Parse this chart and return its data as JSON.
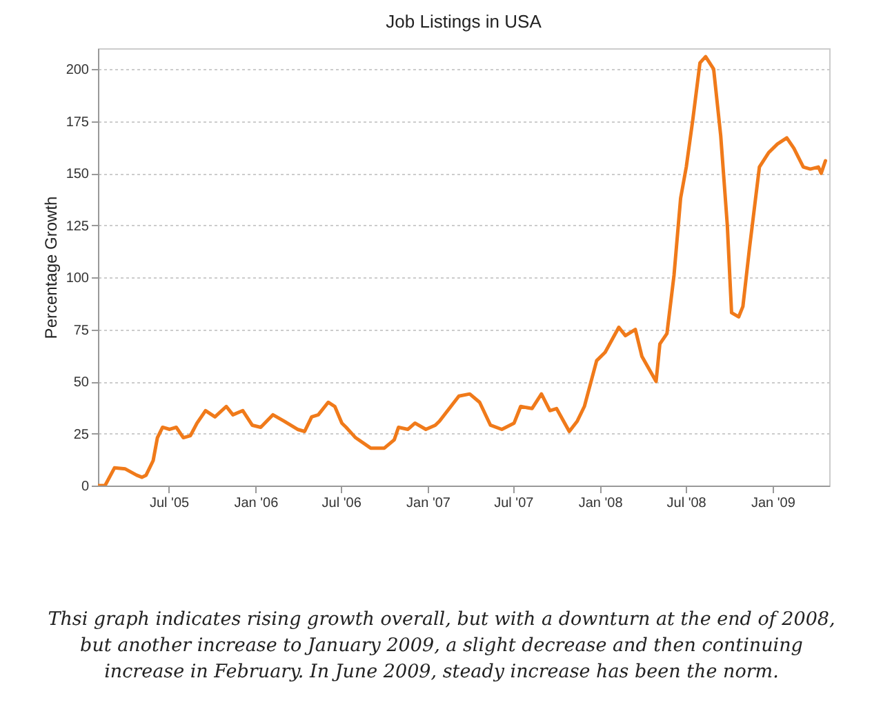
{
  "chart_data": {
    "type": "line",
    "title": "Job Listings in USA",
    "ylabel": "Percentage Growth",
    "annotations": [
      "Thsi graph indicates rising growth overall, but with a downturn at the end of 2008, but another increase to January 2009, a slight decrease and then continuing increase in February. In June 2009, steady increase has been the norm."
    ],
    "x": [
      "2005-02-01",
      "2005-02-16",
      "2005-03-08",
      "2005-03-31",
      "2005-04-24",
      "2005-05-05",
      "2005-05-14",
      "2005-05-29",
      "2005-06-07",
      "2005-06-18",
      "2005-07-03",
      "2005-07-17",
      "2005-08-01",
      "2005-08-16",
      "2005-08-30",
      "2005-09-17",
      "2005-10-07",
      "2005-10-31",
      "2005-11-14",
      "2005-12-05",
      "2005-12-25",
      "2006-01-12",
      "2006-02-07",
      "2006-03-02",
      "2006-03-31",
      "2006-04-15",
      "2006-04-30",
      "2006-05-14",
      "2006-06-04",
      "2006-06-18",
      "2006-07-03",
      "2006-07-12",
      "2006-08-01",
      "2006-09-02",
      "2006-10-01",
      "2006-10-22",
      "2006-10-31",
      "2006-11-20",
      "2006-12-05",
      "2006-12-28",
      "2007-01-17",
      "2007-01-26",
      "2007-03-08",
      "2007-03-31",
      "2007-04-21",
      "2007-05-14",
      "2007-06-07",
      "2007-07-03",
      "2007-07-17",
      "2007-08-10",
      "2007-08-30",
      "2007-09-17",
      "2007-10-01",
      "2007-10-28",
      "2007-11-14",
      "2007-11-29",
      "2007-12-25",
      "2008-01-12",
      "2008-02-10",
      "2008-02-24",
      "2008-03-16",
      "2008-03-30",
      "2008-04-29",
      "2008-05-07",
      "2008-05-22",
      "2008-06-06",
      "2008-06-20",
      "2008-07-02",
      "2008-07-16",
      "2008-07-31",
      "2008-08-12",
      "2008-08-29",
      "2008-09-13",
      "2008-09-27",
      "2008-10-06",
      "2008-10-21",
      "2008-10-30",
      "2008-11-13",
      "2008-12-04",
      "2008-12-24",
      "2009-01-11",
      "2009-01-31",
      "2009-02-15",
      "2009-03-07",
      "2009-03-22",
      "2009-04-08",
      "2009-04-14",
      "2009-04-23"
    ],
    "series": [
      {
        "color": "#f07a1a",
        "values": [
          0,
          0,
          8.5,
          8,
          5,
          4,
          5,
          12,
          23,
          28,
          27,
          28,
          23,
          24,
          30,
          36,
          33,
          38,
          34,
          36,
          29,
          28,
          34,
          31,
          27,
          26,
          33,
          34,
          40,
          38,
          30,
          28,
          23,
          18,
          18,
          22,
          28,
          27,
          30,
          27,
          29,
          31,
          43,
          44,
          40,
          29,
          27,
          30,
          38,
          37,
          44,
          36,
          37,
          26,
          31,
          38,
          60,
          64,
          76,
          72,
          75,
          62,
          50,
          68,
          73,
          101,
          138,
          153,
          176,
          203,
          206,
          200,
          168,
          125,
          83,
          81,
          86,
          114,
          153,
          160,
          164,
          167,
          162,
          153,
          152,
          153,
          150,
          156
        ]
      }
    ],
    "xlim": [
      "2005-02-01",
      "2009-05-01"
    ],
    "xticks": [
      {
        "value": "2005-07-01",
        "label": "Jul '05"
      },
      {
        "value": "2006-01-01",
        "label": "Jan '06"
      },
      {
        "value": "2006-07-01",
        "label": "Jul '06"
      },
      {
        "value": "2007-01-01",
        "label": "Jan '07"
      },
      {
        "value": "2007-07-01",
        "label": "Jul '07"
      },
      {
        "value": "2008-01-01",
        "label": "Jan '08"
      },
      {
        "value": "2008-07-01",
        "label": "Jul '08"
      },
      {
        "value": "2009-01-01",
        "label": "Jan '09"
      }
    ],
    "ylim": [
      0,
      210
    ],
    "yticks": [
      0,
      25,
      50,
      75,
      100,
      125,
      150,
      175,
      200
    ],
    "grid": "y",
    "line_style": "solid"
  }
}
